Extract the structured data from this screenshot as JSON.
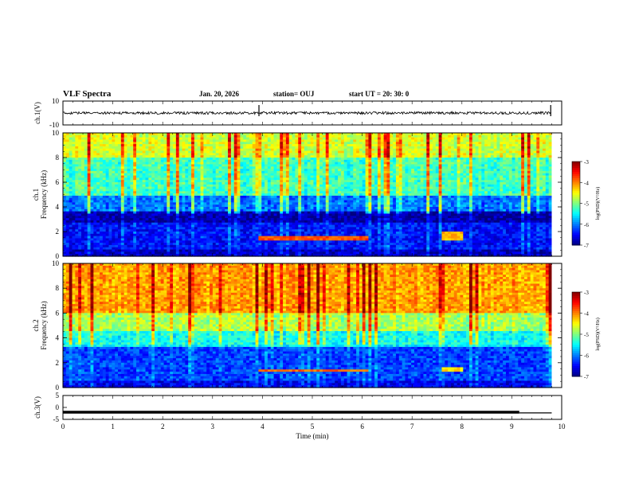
{
  "header": {
    "title": "VLF Spectra",
    "date": "Jan. 20, 2026",
    "station": "station= OUJ",
    "start_ut": "start  UT  =   20: 30: 0"
  },
  "chart_data": [
    {
      "type": "line",
      "name": "ch1 waveform",
      "ylabel": "ch.1(V)",
      "ylim": [
        -10,
        10
      ],
      "yticks": [
        "10",
        "-10"
      ],
      "baseline": 0,
      "note": "dense noise trace near 0 V with spikes near 3.9 and 9.8 min"
    },
    {
      "type": "heatmap",
      "name": "ch1 spectrogram",
      "ylabel_top": "ch.1",
      "ylabel": "Frequency (kHz)",
      "ylim": [
        0,
        10
      ],
      "yticks": [
        "10",
        "8",
        "6",
        "4",
        "2",
        "0"
      ],
      "xlim": [
        0,
        10
      ],
      "colorbar": {
        "label": "log(PSD)(V²/Hz)",
        "ticks": [
          "-3",
          "-4",
          "-5",
          "-6",
          "-7"
        ],
        "range": [
          -7,
          -3
        ]
      },
      "bands": [
        {
          "f0": 8.0,
          "f1": 10.0,
          "level": -4.8
        },
        {
          "f0": 5.0,
          "f1": 8.0,
          "level": -5.4
        },
        {
          "f0": 3.6,
          "f1": 5.0,
          "level": -6.2
        },
        {
          "f0": 2.8,
          "f1": 3.6,
          "level": -6.9
        },
        {
          "f0": 0.5,
          "f1": 2.8,
          "level": -6.5
        },
        {
          "f0": 0.0,
          "f1": 0.5,
          "level": -6.8
        }
      ],
      "events": [
        {
          "t0": 3.9,
          "t1": 6.1,
          "f0": 1.3,
          "f1": 1.6,
          "level": -3.8
        },
        {
          "t0": 7.6,
          "t1": 8.0,
          "f0": 1.3,
          "f1": 2.0,
          "level": -4.2
        }
      ]
    },
    {
      "type": "heatmap",
      "name": "ch2 spectrogram",
      "ylabel_top": "ch.2",
      "ylabel": "Frequency (kHz)",
      "ylim": [
        0,
        10
      ],
      "yticks": [
        "10",
        "8",
        "6",
        "4",
        "2",
        "0"
      ],
      "xlim": [
        0,
        10
      ],
      "colorbar": {
        "label": "log(PSD)(V²/Hz)",
        "ticks": [
          "-3",
          "-4",
          "-5",
          "-6",
          "-7"
        ],
        "range": [
          -7,
          -3
        ]
      },
      "bands": [
        {
          "f0": 6.0,
          "f1": 10.0,
          "level": -4.3
        },
        {
          "f0": 4.5,
          "f1": 6.0,
          "level": -5.0
        },
        {
          "f0": 3.2,
          "f1": 4.5,
          "level": -5.6
        },
        {
          "f0": 0.5,
          "f1": 3.2,
          "level": -6.3
        },
        {
          "f0": 0.0,
          "f1": 0.5,
          "level": -6.6
        }
      ],
      "events": [
        {
          "t0": 3.9,
          "t1": 6.1,
          "f0": 1.2,
          "f1": 1.5,
          "level": -3.9
        },
        {
          "t0": 7.6,
          "t1": 8.0,
          "f0": 1.2,
          "f1": 1.7,
          "level": -4.4
        }
      ]
    },
    {
      "type": "line",
      "name": "ch3 level",
      "ylabel": "ch.3(V)",
      "ylim": [
        -5,
        5
      ],
      "yticks": [
        "5",
        "0",
        "-5"
      ],
      "x": [
        0,
        9.15,
        9.15,
        9.8
      ],
      "values": [
        -2.0,
        -2.0,
        -2.3,
        -2.3
      ],
      "xlabel": "Time  (min)",
      "xlim": [
        0,
        10
      ],
      "xticks": [
        "0",
        "1",
        "2",
        "3",
        "4",
        "5",
        "6",
        "7",
        "8",
        "9",
        "10"
      ]
    }
  ]
}
